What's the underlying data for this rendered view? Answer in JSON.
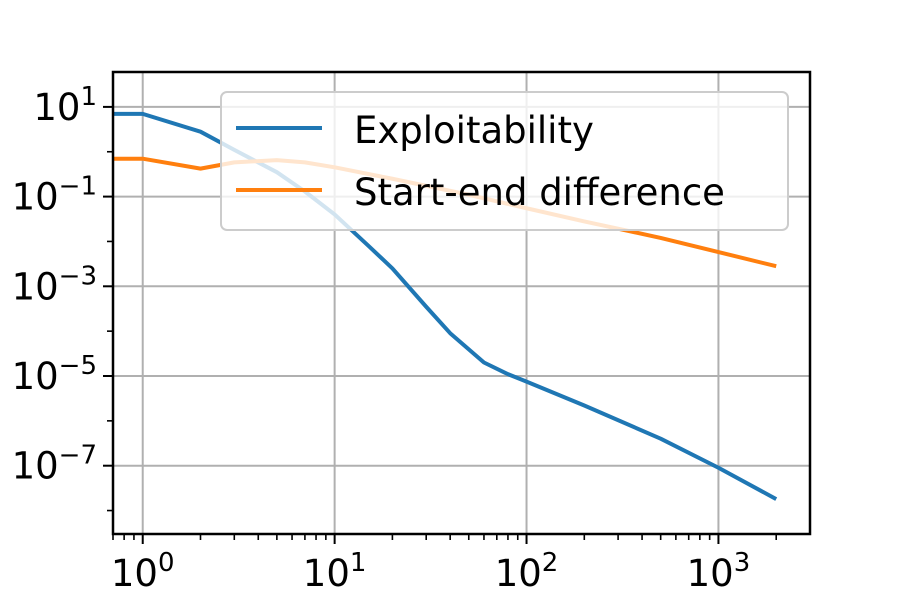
{
  "chart_data": {
    "type": "line",
    "title": "",
    "xlabel": "",
    "ylabel": "",
    "x_scale": "log",
    "y_scale": "log",
    "xlim": [
      0.7,
      3000
    ],
    "ylim": [
      3e-09,
      60
    ],
    "grid": true,
    "legend_position": "top-right",
    "x_ticks": [
      {
        "value": 1,
        "base": "10",
        "exp": "0"
      },
      {
        "value": 10,
        "base": "10",
        "exp": "1"
      },
      {
        "value": 100,
        "base": "10",
        "exp": "2"
      },
      {
        "value": 1000,
        "base": "10",
        "exp": "3"
      }
    ],
    "y_ticks": [
      {
        "value": 10,
        "base": "10",
        "exp": "1"
      },
      {
        "value": 0.1,
        "base": "10",
        "exp": "−1"
      },
      {
        "value": 0.001,
        "base": "10",
        "exp": "−3"
      },
      {
        "value": 1e-05,
        "base": "10",
        "exp": "−5"
      },
      {
        "value": 1e-07,
        "base": "10",
        "exp": "−7"
      }
    ],
    "series": [
      {
        "name": "Exploitability",
        "color": "#1f77b4",
        "points": [
          [
            0.7,
            7.0
          ],
          [
            1,
            7.0
          ],
          [
            2,
            2.8
          ],
          [
            3,
            1.1
          ],
          [
            5,
            0.35
          ],
          [
            7,
            0.13
          ],
          [
            10,
            0.04
          ],
          [
            15,
            0.008
          ],
          [
            20,
            0.0025
          ],
          [
            30,
            0.00035
          ],
          [
            40,
            9e-05
          ],
          [
            60,
            2e-05
          ],
          [
            80,
            1.1e-05
          ],
          [
            100,
            7.5e-06
          ],
          [
            200,
            2.2e-06
          ],
          [
            500,
            4e-07
          ],
          [
            1000,
            9e-08
          ],
          [
            2000,
            1.8e-08
          ]
        ]
      },
      {
        "name": "Start-end difference",
        "color": "#ff7f0e",
        "points": [
          [
            0.7,
            0.7
          ],
          [
            1,
            0.7
          ],
          [
            2,
            0.42
          ],
          [
            3,
            0.58
          ],
          [
            5,
            0.65
          ],
          [
            7,
            0.58
          ],
          [
            10,
            0.45
          ],
          [
            20,
            0.25
          ],
          [
            50,
            0.11
          ],
          [
            100,
            0.055
          ],
          [
            200,
            0.028
          ],
          [
            500,
            0.012
          ],
          [
            1000,
            0.0058
          ],
          [
            2000,
            0.0028
          ]
        ]
      }
    ]
  }
}
